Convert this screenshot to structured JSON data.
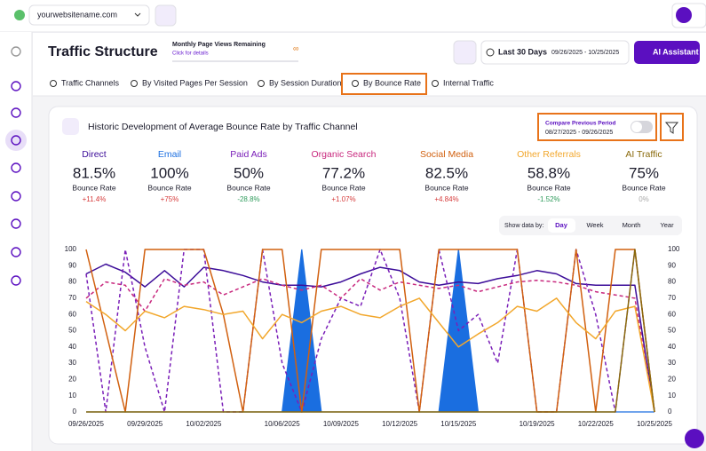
{
  "header": {
    "site": "yourwebsitename.com",
    "title": "Traffic Structure",
    "quota_label": "Monthly Page Views Remaining",
    "quota_link": "Click for details",
    "quota_value": "∞",
    "range_label": "Last 30 Days",
    "range_dates": "09/26/2025 - 10/25/2025",
    "assistant": "AI Assistant"
  },
  "tabs": [
    "Traffic Channels",
    "By Visited Pages Per Session",
    "By Session Duration",
    "By Bounce Rate",
    "Internal Traffic"
  ],
  "card": {
    "title": "Historic Development of Average Bounce Rate by Traffic Channel",
    "compare_label": "Compare Previous Period",
    "compare_range": "08/27/2025 - 09/26/2025",
    "show_by_label": "Show data by:",
    "show_by_options": [
      "Day",
      "Week",
      "Month",
      "Year"
    ],
    "metrics": [
      {
        "value": "81.5%",
        "label": "Bounce Rate",
        "change": "+11.4%"
      },
      {
        "value": "100%",
        "label": "Bounce Rate",
        "change": "+75%"
      },
      {
        "value": "50%",
        "label": "Bounce Rate",
        "change": "-28.8%"
      },
      {
        "value": "77.2%",
        "label": "Bounce Rate",
        "change": "+1.07%"
      },
      {
        "value": "82.5%",
        "label": "Bounce Rate",
        "change": "+4.84%"
      },
      {
        "value": "58.8%",
        "label": "Bounce Rate",
        "change": "-1.52%"
      },
      {
        "value": "75%",
        "label": "Bounce Rate",
        "change": "0%"
      }
    ]
  },
  "chart_data": {
    "type": "line",
    "categories": [
      "09/26/2025",
      null,
      null,
      "09/29/2025",
      null,
      null,
      "10/02/2025",
      null,
      null,
      null,
      "10/06/2025",
      null,
      null,
      "10/09/2025",
      null,
      null,
      "10/12/2025",
      null,
      null,
      "10/15/2025",
      null,
      null,
      null,
      "10/19/2025",
      null,
      null,
      "10/22/2025",
      null,
      null,
      "10/25/2025"
    ],
    "series": [
      {
        "name": "Direct",
        "color": "#3c0d99",
        "style": "solid",
        "values": [
          85,
          91,
          86,
          77,
          87,
          77,
          89,
          87,
          84,
          80,
          78,
          78,
          77,
          80,
          85,
          89,
          87,
          80,
          78,
          80,
          79,
          82,
          84,
          87,
          85,
          79,
          78,
          78,
          78,
          0
        ]
      },
      {
        "name": "Email",
        "color": "#1a6ee0",
        "style": "area",
        "values": [
          0,
          0,
          0,
          0,
          0,
          0,
          0,
          0,
          0,
          0,
          0,
          100,
          0,
          0,
          0,
          0,
          0,
          0,
          0,
          100,
          0,
          0,
          0,
          0,
          0,
          0,
          0,
          0,
          0,
          0
        ]
      },
      {
        "name": "Paid Ads",
        "color": "#7a1fb8",
        "style": "dashed",
        "values": [
          85,
          0,
          100,
          40,
          0,
          100,
          100,
          0,
          0,
          100,
          30,
          0,
          45,
          70,
          65,
          100,
          70,
          0,
          100,
          50,
          60,
          30,
          100,
          0,
          0,
          100,
          60,
          0,
          100,
          0
        ]
      },
      {
        "name": "Organic Search",
        "color": "#c8287e",
        "style": "dashed",
        "values": [
          70,
          80,
          78,
          62,
          82,
          78,
          80,
          72,
          77,
          82,
          78,
          75,
          78,
          70,
          82,
          75,
          80,
          78,
          76,
          78,
          74,
          77,
          80,
          81,
          80,
          78,
          74,
          72,
          70,
          0
        ]
      },
      {
        "name": "Social Media",
        "color": "#d1600f",
        "style": "solid",
        "values": [
          100,
          50,
          0,
          100,
          100,
          100,
          100,
          60,
          0,
          100,
          100,
          0,
          100,
          100,
          100,
          100,
          100,
          0,
          100,
          100,
          100,
          100,
          100,
          0,
          0,
          100,
          0,
          100,
          100,
          0
        ]
      },
      {
        "name": "Other Referrals",
        "color": "#f2a72c",
        "style": "solid",
        "values": [
          68,
          60,
          50,
          62,
          58,
          65,
          63,
          60,
          62,
          45,
          60,
          55,
          62,
          65,
          60,
          58,
          65,
          70,
          55,
          40,
          48,
          55,
          65,
          62,
          70,
          55,
          45,
          62,
          65,
          0
        ]
      },
      {
        "name": "AI Traffic",
        "color": "#8a6a0c",
        "style": "solid",
        "values": [
          0,
          0,
          0,
          0,
          0,
          0,
          0,
          0,
          0,
          0,
          0,
          0,
          0,
          0,
          0,
          0,
          0,
          0,
          0,
          0,
          0,
          0,
          0,
          0,
          0,
          0,
          0,
          0,
          100,
          0
        ]
      }
    ],
    "ylim": [
      0,
      100
    ],
    "yticks": [
      0,
      10,
      20,
      30,
      40,
      50,
      60,
      70,
      80,
      90,
      100
    ],
    "y2lim": [
      0,
      100
    ],
    "y2ticks": [
      0,
      10,
      20,
      30,
      40,
      50,
      60,
      70,
      80,
      90,
      100
    ],
    "grid": false
  }
}
